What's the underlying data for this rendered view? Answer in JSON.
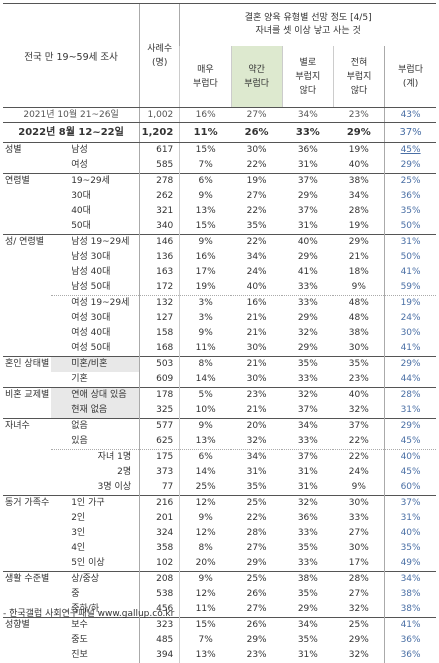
{
  "header": {
    "survey": "전국 만 19~59세 조사",
    "n_label_1": "사례수",
    "n_label_2": "(명)",
    "title_1": "결혼 양육 유형별 선망 정도 [4/5]",
    "title_2": "자녀를 셋 이상 낳고 사는 것",
    "opts": [
      [
        "매우",
        "부럽다"
      ],
      [
        "약간",
        "부럽다"
      ],
      [
        "별로",
        "부럽지",
        "않다"
      ],
      [
        "전혀",
        "부럽지",
        "않다"
      ],
      [
        "부럽다",
        "(계)"
      ]
    ]
  },
  "ref_row": {
    "label": "2021년 10월 21~26일",
    "n": "1,002",
    "v": [
      "16%",
      "27%",
      "34%",
      "23%",
      "43%"
    ]
  },
  "main_row": {
    "label": "2022년 8월 12~22일",
    "n": "1,202",
    "v": [
      "11%",
      "26%",
      "33%",
      "29%",
      "37%"
    ]
  },
  "groups": [
    {
      "cat": "성별",
      "rows": [
        {
          "label": "남성",
          "n": "617",
          "v": [
            "15%",
            "30%",
            "36%",
            "19%",
            "45%"
          ],
          "hl": true
        },
        {
          "label": "여성",
          "n": "585",
          "v": [
            "7%",
            "22%",
            "31%",
            "40%",
            "29%"
          ]
        }
      ]
    },
    {
      "cat": "연령별",
      "rows": [
        {
          "label": "19~29세",
          "n": "278",
          "v": [
            "6%",
            "19%",
            "37%",
            "38%",
            "25%"
          ]
        },
        {
          "label": "30대",
          "n": "262",
          "v": [
            "9%",
            "27%",
            "29%",
            "34%",
            "36%"
          ]
        },
        {
          "label": "40대",
          "n": "321",
          "v": [
            "13%",
            "22%",
            "37%",
            "28%",
            "35%"
          ]
        },
        {
          "label": "50대",
          "n": "340",
          "v": [
            "15%",
            "35%",
            "31%",
            "19%",
            "50%"
          ]
        }
      ]
    },
    {
      "cat": "성/ 연령별",
      "rows": [
        {
          "label": "남성 19~29세",
          "n": "146",
          "v": [
            "9%",
            "22%",
            "40%",
            "29%",
            "31%"
          ]
        },
        {
          "label": "남성 30대",
          "n": "136",
          "v": [
            "16%",
            "34%",
            "29%",
            "21%",
            "50%"
          ]
        },
        {
          "label": "남성 40대",
          "n": "163",
          "v": [
            "17%",
            "24%",
            "41%",
            "18%",
            "41%"
          ]
        },
        {
          "label": "남성 50대",
          "n": "172",
          "v": [
            "19%",
            "40%",
            "33%",
            "9%",
            "59%"
          ],
          "dotted": true
        },
        {
          "label": "여성 19~29세",
          "n": "132",
          "v": [
            "3%",
            "16%",
            "33%",
            "48%",
            "19%"
          ]
        },
        {
          "label": "여성 30대",
          "n": "127",
          "v": [
            "3%",
            "21%",
            "29%",
            "48%",
            "24%"
          ]
        },
        {
          "label": "여성 40대",
          "n": "158",
          "v": [
            "9%",
            "21%",
            "32%",
            "38%",
            "30%"
          ]
        },
        {
          "label": "여성 50대",
          "n": "168",
          "v": [
            "11%",
            "30%",
            "29%",
            "30%",
            "41%"
          ]
        }
      ]
    },
    {
      "cat": "혼인 상태별",
      "rows": [
        {
          "label": "미혼/비혼",
          "n": "503",
          "v": [
            "8%",
            "21%",
            "35%",
            "35%",
            "29%"
          ],
          "shade": true
        },
        {
          "label": "기혼",
          "n": "609",
          "v": [
            "14%",
            "30%",
            "33%",
            "23%",
            "44%"
          ]
        }
      ]
    },
    {
      "cat": "비혼 교제별",
      "rows": [
        {
          "label": "연애 상대 있음",
          "n": "178",
          "v": [
            "5%",
            "23%",
            "32%",
            "40%",
            "28%"
          ],
          "shade": true
        },
        {
          "label": "현재 없음",
          "n": "325",
          "v": [
            "10%",
            "21%",
            "37%",
            "32%",
            "31%"
          ],
          "shade": true
        }
      ]
    },
    {
      "cat": "자녀수",
      "rows": [
        {
          "label": "없음",
          "n": "577",
          "v": [
            "9%",
            "20%",
            "34%",
            "37%",
            "29%"
          ]
        },
        {
          "label": "있음",
          "n": "625",
          "v": [
            "13%",
            "32%",
            "33%",
            "22%",
            "45%"
          ],
          "dotted": true
        },
        {
          "label": "자녀 1명",
          "n": "175",
          "v": [
            "6%",
            "34%",
            "37%",
            "22%",
            "40%"
          ],
          "right": true
        },
        {
          "label": "2명",
          "n": "373",
          "v": [
            "14%",
            "31%",
            "31%",
            "24%",
            "45%"
          ],
          "right": true
        },
        {
          "label": "3명 이상",
          "n": "77",
          "v": [
            "25%",
            "35%",
            "31%",
            "9%",
            "60%"
          ],
          "right": true
        }
      ]
    },
    {
      "cat": "동거 가족수",
      "rows": [
        {
          "label": "1인 가구",
          "n": "216",
          "v": [
            "12%",
            "25%",
            "32%",
            "30%",
            "37%"
          ]
        },
        {
          "label": "2인",
          "n": "201",
          "v": [
            "9%",
            "22%",
            "36%",
            "33%",
            "31%"
          ]
        },
        {
          "label": "3인",
          "n": "324",
          "v": [
            "12%",
            "28%",
            "33%",
            "27%",
            "40%"
          ]
        },
        {
          "label": "4인",
          "n": "358",
          "v": [
            "8%",
            "27%",
            "35%",
            "30%",
            "35%"
          ]
        },
        {
          "label": "5인 이상",
          "n": "102",
          "v": [
            "20%",
            "29%",
            "33%",
            "17%",
            "49%"
          ]
        }
      ]
    },
    {
      "cat": "생활 수준별",
      "rows": [
        {
          "label": "상/중상",
          "n": "208",
          "v": [
            "9%",
            "25%",
            "38%",
            "28%",
            "34%"
          ]
        },
        {
          "label": "중",
          "n": "538",
          "v": [
            "12%",
            "26%",
            "35%",
            "27%",
            "38%"
          ]
        },
        {
          "label": "중하/하",
          "n": "456",
          "v": [
            "11%",
            "27%",
            "29%",
            "32%",
            "38%"
          ]
        }
      ]
    },
    {
      "cat": "성향별",
      "rows": [
        {
          "label": "보수",
          "n": "323",
          "v": [
            "15%",
            "26%",
            "34%",
            "25%",
            "41%"
          ]
        },
        {
          "label": "중도",
          "n": "485",
          "v": [
            "7%",
            "29%",
            "35%",
            "29%",
            "36%"
          ]
        },
        {
          "label": "진보",
          "n": "394",
          "v": [
            "13%",
            "23%",
            "31%",
            "32%",
            "36%"
          ]
        }
      ]
    }
  ],
  "footer": "- 한국갤럽 사회연구패널 www.gallup.co.kr"
}
